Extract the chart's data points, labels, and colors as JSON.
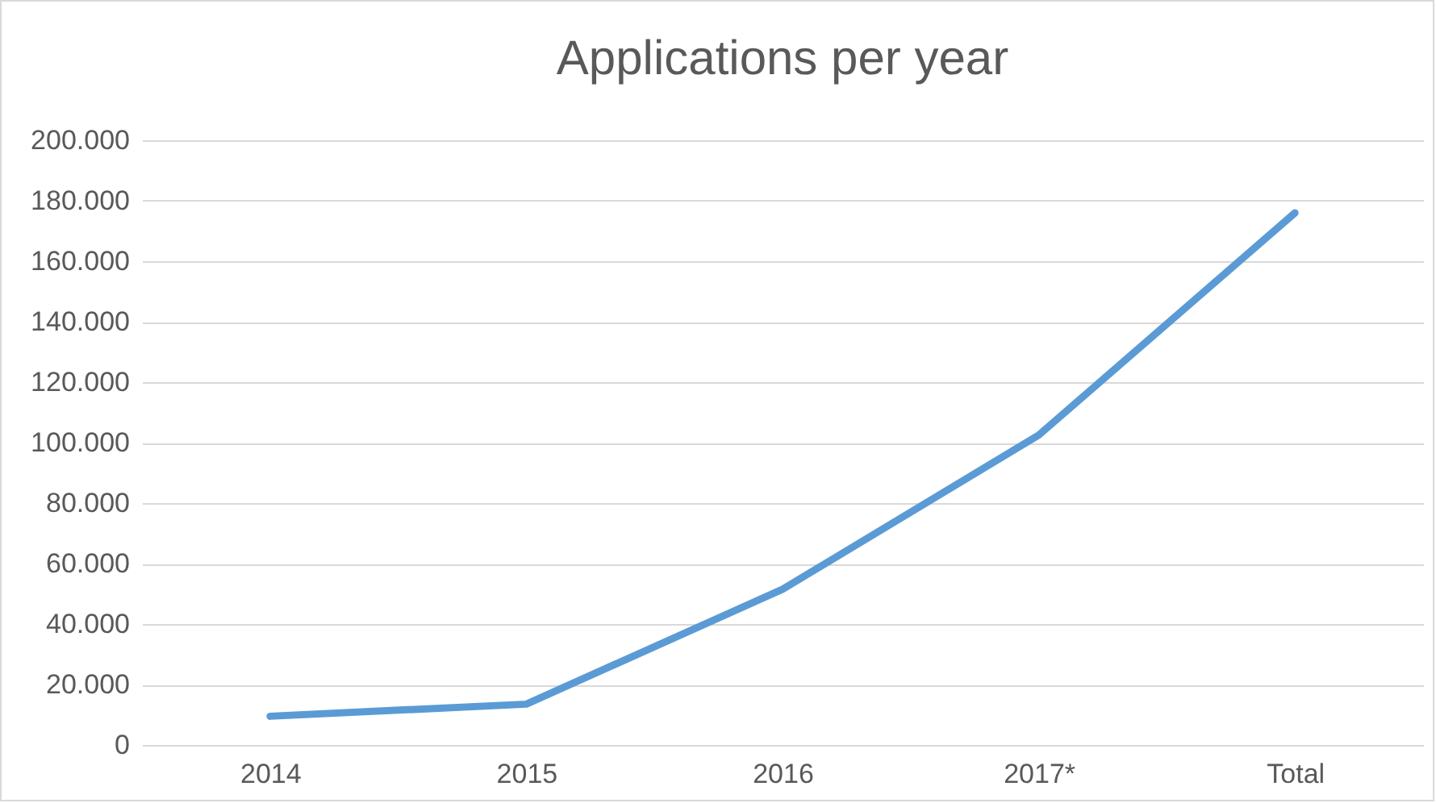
{
  "chart_data": {
    "type": "line",
    "title": "Applications per year",
    "categories": [
      "2014",
      "2015",
      "2016",
      "2017*",
      "Total"
    ],
    "series": [
      {
        "color": "#5b9bd5",
        "values": [
          9500,
          13500,
          51500,
          102500,
          176000
        ]
      }
    ],
    "ylim": [
      0,
      200000
    ],
    "yticks": [
      0,
      {
        "value": 20000,
        "label": "20.000"
      },
      {
        "value": 40000,
        "label": "40.000"
      },
      {
        "value": 60000,
        "label": "60.000"
      },
      {
        "value": 80000,
        "label": "80.000"
      },
      {
        "value": 100000,
        "label": "100.000"
      },
      {
        "value": 120000,
        "label": "120.000"
      },
      {
        "value": 140000,
        "label": "140.000"
      },
      {
        "value": 160000,
        "label": "160.000"
      },
      {
        "value": 180000,
        "label": "180.000"
      },
      {
        "value": 200000,
        "label": "200.000"
      }
    ],
    "grid": "y",
    "marker": "none",
    "line_style": "solid"
  }
}
